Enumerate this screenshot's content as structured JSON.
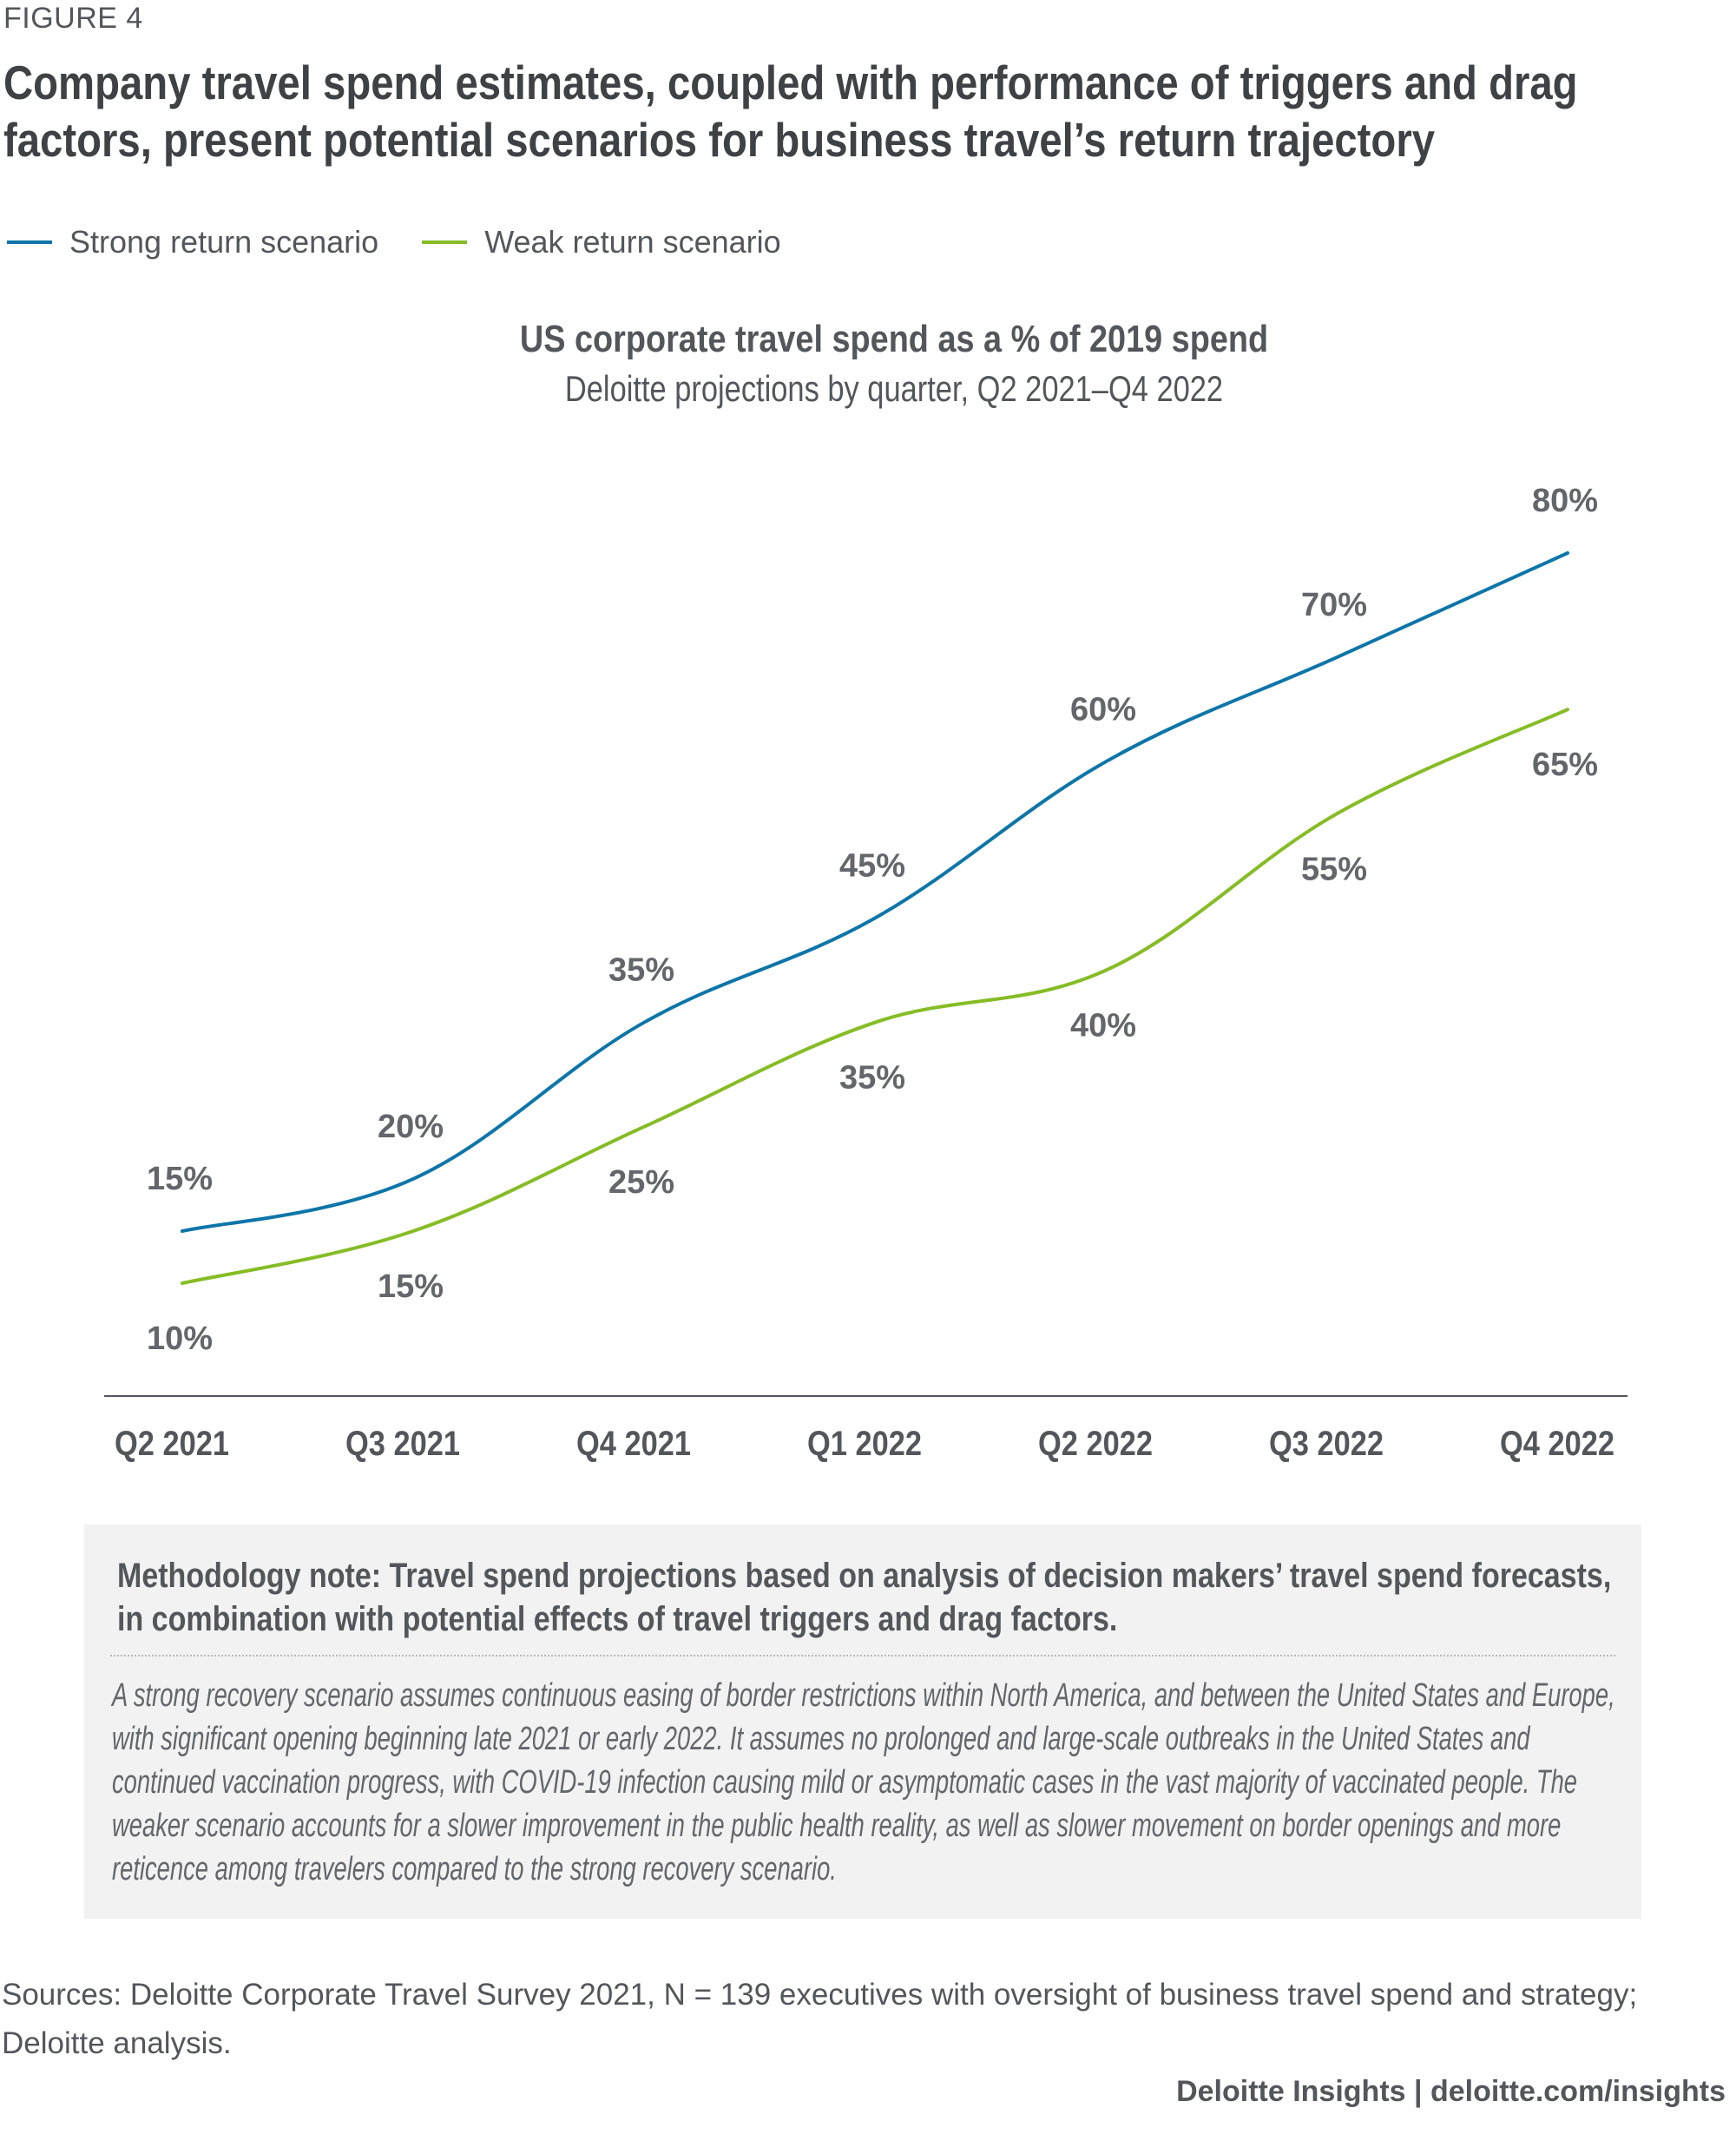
{
  "figure_label": "FIGURE 4",
  "title_lines": [
    "Company travel spend estimates, coupled with performance of triggers and drag",
    "factors, present potential scenarios for business travel’s return trajectory"
  ],
  "chart_data": {
    "type": "line",
    "title": "US corporate travel spend as a % of 2019 spend",
    "subtitle": "Deloitte projections by quarter, Q2 2021–Q4 2022",
    "categories": [
      "Q2 2021",
      "Q3 2021",
      "Q4 2021",
      "Q1 2022",
      "Q2 2022",
      "Q3 2022",
      "Q4 2022"
    ],
    "series": [
      {
        "name": "Strong return scenario",
        "color": "#0d75a8",
        "values": [
          15,
          20,
          35,
          45,
          60,
          70,
          80
        ],
        "labels": [
          "15%",
          "20%",
          "35%",
          "45%",
          "60%",
          "70%",
          "80%"
        ],
        "label_position": "above"
      },
      {
        "name": "Weak return scenario",
        "color": "#86bc25",
        "values": [
          10,
          15,
          25,
          35,
          40,
          55,
          65
        ],
        "labels": [
          "10%",
          "15%",
          "25%",
          "35%",
          "40%",
          "55%",
          "65%"
        ],
        "label_position": "below"
      }
    ],
    "ylim": [
      0,
      85
    ],
    "unit": "%",
    "grid": false,
    "legend_position": "top-left"
  },
  "methodology": {
    "heading_lines": [
      "Methodology note: Travel spend projections based on analysis of decision makers’ travel spend forecasts,",
      "in combination with potential effects of travel triggers and drag factors."
    ],
    "body_lines": [
      "A strong recovery scenario assumes continuous easing of border restrictions within North America, and between the United States and Europe,",
      "with significant opening beginning late 2021 or early 2022. It assumes no prolonged and large-scale outbreaks in the United States and",
      "continued vaccination progress, with COVID-19 infection causing mild or asymptomatic cases in the vast majority of vaccinated people. The",
      "weaker scenario accounts for a slower improvement in the public health reality, as well as slower movement on border openings and more",
      "reticence among travelers compared to the strong recovery scenario."
    ]
  },
  "sources_lines": [
    "Sources: Deloitte Corporate Travel Survey 2021, N = 139 executives with oversight of business travel spend and strategy;",
    "Deloitte analysis."
  ],
  "footer": "Deloitte Insights | deloitte.com/insights"
}
